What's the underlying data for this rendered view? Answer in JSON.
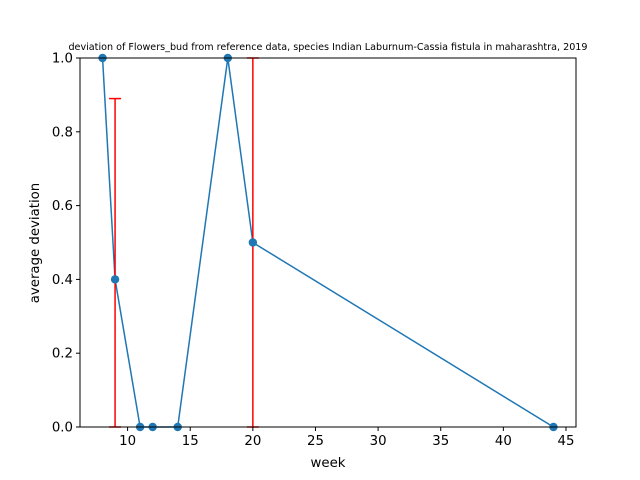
{
  "chart_data": {
    "type": "line",
    "title": "deviation of Flowers_bud from reference data, species Indian Laburnum-Cassia fistula in maharashtra, 2019",
    "xlabel": "week",
    "ylabel": "average deviation",
    "xlim": [
      6.2,
      45.8
    ],
    "ylim": [
      0.0,
      1.0
    ],
    "xticks": [
      10,
      15,
      20,
      25,
      30,
      35,
      40,
      45
    ],
    "yticks": [
      0.0,
      0.2,
      0.4,
      0.6,
      0.8,
      1.0
    ],
    "grid": false,
    "legend": "none",
    "series": [
      {
        "color": "#1f77b4",
        "marker": "circle",
        "x": [
          8,
          9,
          11,
          12,
          14,
          18,
          20,
          44
        ],
        "y": [
          1.0,
          0.4,
          0.0,
          0.0,
          0.0,
          1.0,
          0.5,
          0.0
        ]
      }
    ],
    "error_bars": {
      "color": "#ff0000",
      "x": [
        9,
        20
      ],
      "lower": [
        0.0,
        0.0
      ],
      "upper": [
        0.89,
        1.0
      ]
    }
  }
}
